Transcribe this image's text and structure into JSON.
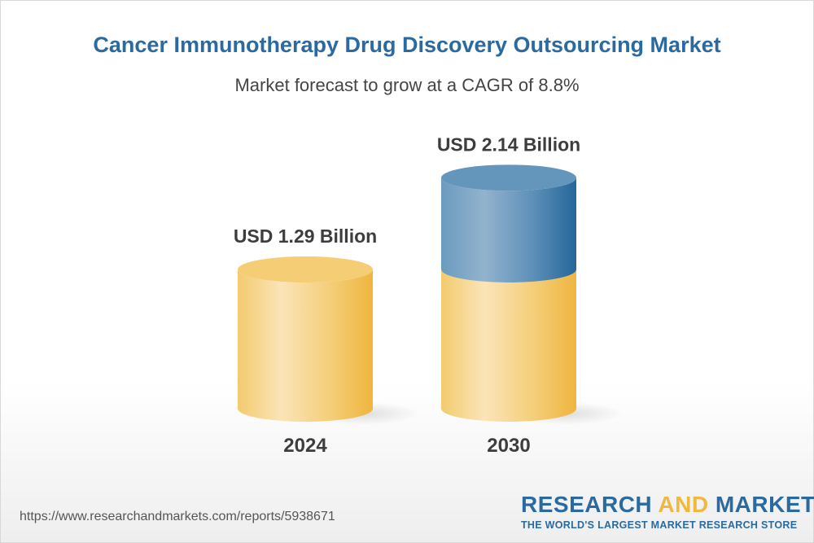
{
  "chart_data": {
    "type": "bar",
    "style": "3d-cylinder",
    "title": "Cancer Immunotherapy Drug Discovery Outsourcing Market",
    "subtitle": "Market forecast to grow at a CAGR of 8.8%",
    "categories": [
      "2024",
      "2030"
    ],
    "values": [
      1.29,
      2.14
    ],
    "unit": "USD Billion",
    "data_labels": [
      "USD 1.29 Billion",
      "USD 2.14 Billion"
    ],
    "grid": false,
    "colors": {
      "base": "#f2c45a",
      "growth": "#2e6a9e"
    }
  },
  "footer": {
    "url": "https://www.researchandmarkets.com/reports/5938671",
    "logo_part1": "RESEARCH ",
    "logo_part2": "AND",
    "logo_part3": " MARKETS",
    "tagline": "THE WORLD'S LARGEST MARKET RESEARCH STORE"
  }
}
